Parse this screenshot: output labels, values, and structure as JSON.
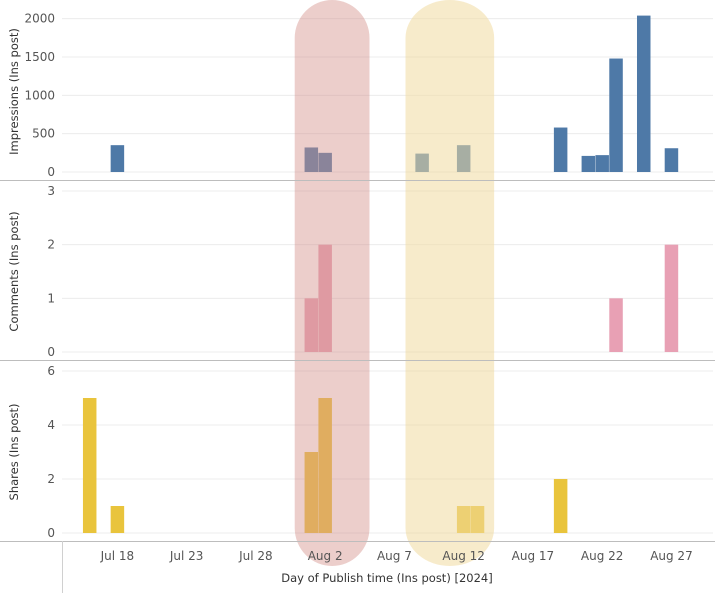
{
  "chart_data": {
    "type": "bar",
    "x_axis": {
      "title": "Day of Publish time (Ins post) [2024]",
      "range": [
        "2024-07-14",
        "2024-08-30"
      ],
      "ticks": [
        {
          "date": "2024-07-18",
          "label": "Jul 18"
        },
        {
          "date": "2024-07-23",
          "label": "Jul 23"
        },
        {
          "date": "2024-07-28",
          "label": "Jul 28"
        },
        {
          "date": "2024-08-02",
          "label": "Aug 2"
        },
        {
          "date": "2024-08-07",
          "label": "Aug 7"
        },
        {
          "date": "2024-08-12",
          "label": "Aug 12"
        },
        {
          "date": "2024-08-17",
          "label": "Aug 17"
        },
        {
          "date": "2024-08-22",
          "label": "Aug 22"
        },
        {
          "date": "2024-08-27",
          "label": "Aug 27"
        }
      ]
    },
    "highlights": [
      {
        "from": "2024-07-31",
        "to": "2024-08-05",
        "color": "#d4938c",
        "opacity": 0.45
      },
      {
        "from": "2024-08-08",
        "to": "2024-08-14",
        "color": "#f0dba0",
        "opacity": 0.55
      }
    ],
    "panels": [
      {
        "ylabel": "Impressions (Ins post)",
        "ylim": [
          0,
          2100
        ],
        "yticks": [
          0,
          500,
          1000,
          1500,
          2000
        ],
        "color": "#4e79a7",
        "bars": [
          {
            "date": "2024-07-18",
            "value": 350
          },
          {
            "date": "2024-08-01",
            "value": 320
          },
          {
            "date": "2024-08-02",
            "value": 250
          },
          {
            "date": "2024-08-09",
            "value": 240
          },
          {
            "date": "2024-08-12",
            "value": 350
          },
          {
            "date": "2024-08-19",
            "value": 580
          },
          {
            "date": "2024-08-21",
            "value": 210
          },
          {
            "date": "2024-08-22",
            "value": 220
          },
          {
            "date": "2024-08-23",
            "value": 1480
          },
          {
            "date": "2024-08-25",
            "value": 2040
          },
          {
            "date": "2024-08-27",
            "value": 310
          }
        ]
      },
      {
        "ylabel": "Comments (Ins post)",
        "ylim": [
          0,
          3
        ],
        "yticks": [
          0,
          1,
          2,
          3
        ],
        "color": "#e8a0b4",
        "bars": [
          {
            "date": "2024-08-01",
            "value": 1
          },
          {
            "date": "2024-08-02",
            "value": 2
          },
          {
            "date": "2024-08-23",
            "value": 1
          },
          {
            "date": "2024-08-27",
            "value": 2
          }
        ]
      },
      {
        "ylabel": "Shares (Ins post)",
        "ylim": [
          0,
          6
        ],
        "yticks": [
          0,
          2,
          4,
          6
        ],
        "color": "#e9c43c",
        "bars": [
          {
            "date": "2024-07-16",
            "value": 5
          },
          {
            "date": "2024-07-18",
            "value": 1
          },
          {
            "date": "2024-08-01",
            "value": 3
          },
          {
            "date": "2024-08-02",
            "value": 5
          },
          {
            "date": "2024-08-12",
            "value": 1
          },
          {
            "date": "2024-08-13",
            "value": 1
          },
          {
            "date": "2024-08-19",
            "value": 2
          }
        ]
      }
    ]
  }
}
